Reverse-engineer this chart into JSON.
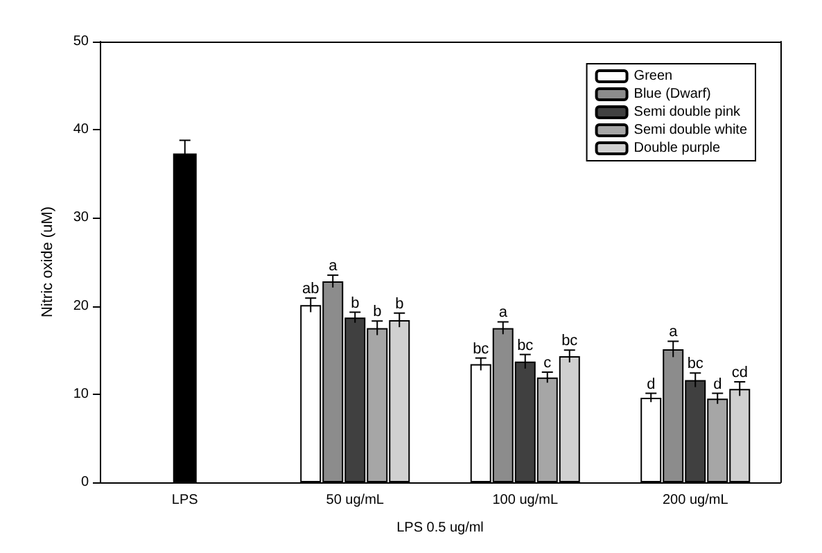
{
  "chart_data": {
    "type": "bar",
    "ylabel": "Nitric oxide (uM)",
    "xlabel": "LPS 0.5 ug/ml",
    "categories": [
      "LPS",
      "50 ug/mL",
      "100 ug/mL",
      "200 ug/mL"
    ],
    "ylim": [
      0,
      50
    ],
    "yticks": [
      0,
      10,
      20,
      30,
      40,
      50
    ],
    "grid": false,
    "legend": "top right",
    "series": [
      {
        "color": "#000000",
        "values": [
          37.3,
          null,
          null,
          null
        ],
        "errors": [
          1.5,
          null,
          null,
          null
        ]
      },
      {
        "name": "Green",
        "color": "#ffffff",
        "values": [
          null,
          20.1,
          13.4,
          9.6
        ],
        "errors": [
          null,
          0.8,
          0.7,
          0.5
        ],
        "value_labels": [
          null,
          "ab",
          "bc",
          "d"
        ]
      },
      {
        "name": "Blue (Dwarf)",
        "color": "#8c8c8c",
        "values": [
          null,
          22.8,
          17.5,
          15.1
        ],
        "errors": [
          null,
          0.7,
          0.7,
          0.9
        ],
        "value_labels": [
          null,
          "a",
          "a",
          "a"
        ]
      },
      {
        "name": "Semi double pink",
        "color": "#404040",
        "values": [
          null,
          18.7,
          13.7,
          11.6
        ],
        "errors": [
          null,
          0.6,
          0.8,
          0.8
        ],
        "value_labels": [
          null,
          "b",
          "bc",
          "bc"
        ]
      },
      {
        "name": "Semi double white",
        "color": "#a6a6a6",
        "values": [
          null,
          17.5,
          11.9,
          9.5
        ],
        "errors": [
          null,
          0.8,
          0.6,
          0.6
        ],
        "value_labels": [
          null,
          "b",
          "c",
          "d"
        ]
      },
      {
        "name": "Double purple",
        "color": "#d0d0d0",
        "values": [
          null,
          18.4,
          14.3,
          10.6
        ],
        "errors": [
          null,
          0.8,
          0.7,
          0.8
        ],
        "value_labels": [
          null,
          "b",
          "bc",
          "cd"
        ]
      }
    ]
  }
}
